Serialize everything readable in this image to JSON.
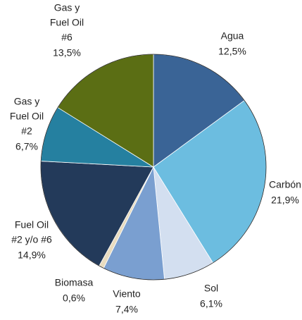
{
  "chart_data": {
    "type": "pie",
    "categories": [
      [
        "Agua"
      ],
      [
        "Carbón"
      ],
      [
        "Sol"
      ],
      [
        "Viento"
      ],
      [
        "Biomasa"
      ],
      [
        "Fuel Oil",
        "#2 y/o #6"
      ],
      [
        "Gas y",
        "Fuel Oil",
        "#2"
      ],
      [
        "Gas y",
        "Fuel Oil",
        "#6"
      ]
    ],
    "values": [
      12.5,
      21.9,
      6.1,
      7.4,
      0.6,
      14.9,
      6.7,
      13.5
    ],
    "value_labels": [
      "12,5%",
      "21,9%",
      "6,1%",
      "7,4%",
      "0,6%",
      "14,9%",
      "6,7%",
      "13,5%"
    ],
    "colors": [
      "#3a6496",
      "#6cbde0",
      "#d3dff0",
      "#7a9fd0",
      "#e8dcc0",
      "#233a5a",
      "#2580a0",
      "#5b6e14"
    ]
  }
}
